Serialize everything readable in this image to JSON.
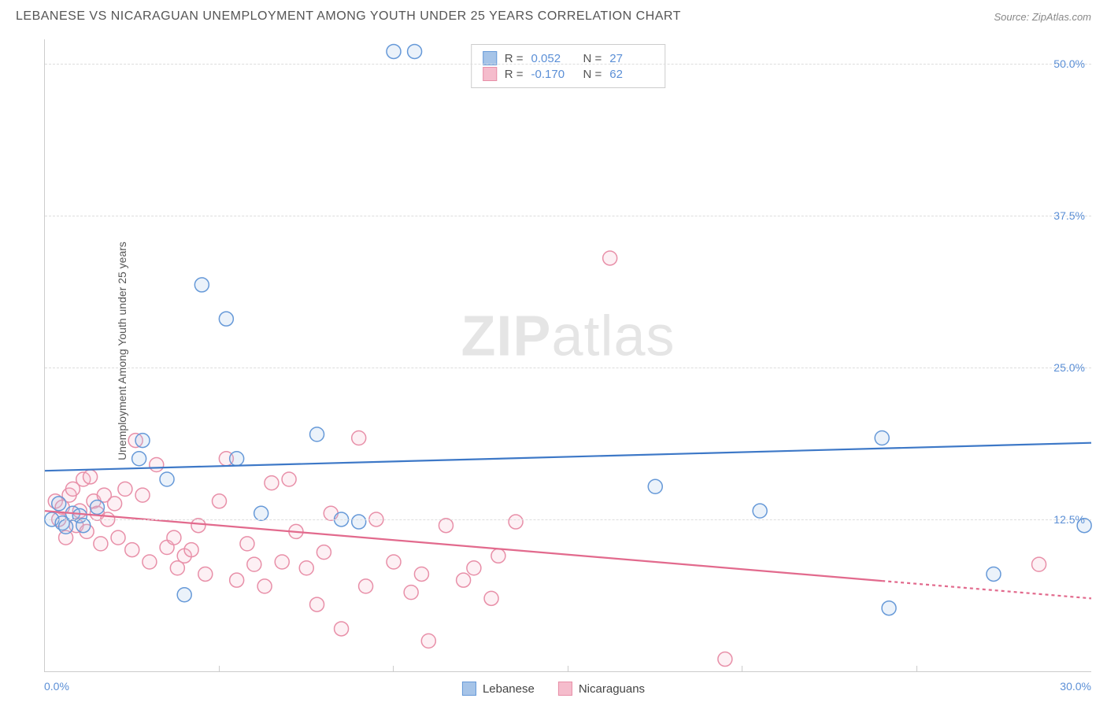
{
  "title": "LEBANESE VS NICARAGUAN UNEMPLOYMENT AMONG YOUTH UNDER 25 YEARS CORRELATION CHART",
  "source": "Source: ZipAtlas.com",
  "ylabel": "Unemployment Among Youth under 25 years",
  "watermark_bold": "ZIP",
  "watermark_rest": "atlas",
  "chart": {
    "type": "scatter",
    "xlim": [
      0,
      30
    ],
    "ylim": [
      0,
      52
    ],
    "background_color": "#ffffff",
    "grid_color": "#dddddd",
    "axis_color": "#cccccc",
    "tick_label_color": "#5b8fd6",
    "tick_fontsize": 14,
    "y_gridlines": [
      12.5,
      25.0,
      37.5,
      50.0
    ],
    "y_tick_labels": [
      "12.5%",
      "25.0%",
      "37.5%",
      "50.0%"
    ],
    "x_ticks": [
      0,
      5,
      10,
      15,
      20,
      25,
      30
    ],
    "x_axis_labels": {
      "left": "0.0%",
      "right": "30.0%"
    },
    "marker_radius": 9,
    "marker_stroke_width": 1.5,
    "marker_fill_opacity": 0.22,
    "line_width": 2.2,
    "series": [
      {
        "name": "Lebanese",
        "color_stroke": "#6699d8",
        "color_fill": "#a6c4e8",
        "line_color": "#3d78c7",
        "R": "0.052",
        "N": "27",
        "trend": {
          "x1": 0,
          "y1": 16.5,
          "x2": 30,
          "y2": 18.8
        },
        "trend_dash_from": 30,
        "points": [
          [
            0.2,
            12.5
          ],
          [
            0.4,
            13.8
          ],
          [
            0.5,
            12.2
          ],
          [
            0.6,
            11.9
          ],
          [
            0.8,
            13.0
          ],
          [
            1.0,
            12.8
          ],
          [
            1.1,
            12.0
          ],
          [
            1.5,
            13.5
          ],
          [
            2.7,
            17.5
          ],
          [
            2.8,
            19.0
          ],
          [
            3.5,
            15.8
          ],
          [
            4.0,
            6.3
          ],
          [
            4.5,
            31.8
          ],
          [
            5.2,
            29.0
          ],
          [
            5.5,
            17.5
          ],
          [
            6.2,
            13.0
          ],
          [
            7.8,
            19.5
          ],
          [
            8.5,
            12.5
          ],
          [
            9.0,
            12.3
          ],
          [
            10.0,
            51.0
          ],
          [
            10.6,
            51.0
          ],
          [
            17.5,
            15.2
          ],
          [
            20.5,
            13.2
          ],
          [
            24.0,
            19.2
          ],
          [
            24.2,
            5.2
          ],
          [
            27.2,
            8.0
          ],
          [
            29.8,
            12.0
          ]
        ]
      },
      {
        "name": "Nicaraguans",
        "color_stroke": "#e88fa8",
        "color_fill": "#f5bccc",
        "line_color": "#e26a8d",
        "R": "-0.170",
        "N": "62",
        "trend": {
          "x1": 0,
          "y1": 13.2,
          "x2": 30,
          "y2": 6.0
        },
        "trend_dash_from": 24,
        "points": [
          [
            0.3,
            14.0
          ],
          [
            0.4,
            12.5
          ],
          [
            0.5,
            13.5
          ],
          [
            0.6,
            11.0
          ],
          [
            0.7,
            14.5
          ],
          [
            0.8,
            15.0
          ],
          [
            0.9,
            12.0
          ],
          [
            1.0,
            13.2
          ],
          [
            1.1,
            15.8
          ],
          [
            1.2,
            11.5
          ],
          [
            1.3,
            16.0
          ],
          [
            1.4,
            14.0
          ],
          [
            1.5,
            13.0
          ],
          [
            1.6,
            10.5
          ],
          [
            1.7,
            14.5
          ],
          [
            1.8,
            12.5
          ],
          [
            2.0,
            13.8
          ],
          [
            2.1,
            11.0
          ],
          [
            2.3,
            15.0
          ],
          [
            2.5,
            10.0
          ],
          [
            2.6,
            19.0
          ],
          [
            2.8,
            14.5
          ],
          [
            3.0,
            9.0
          ],
          [
            3.2,
            17.0
          ],
          [
            3.5,
            10.2
          ],
          [
            3.7,
            11.0
          ],
          [
            3.8,
            8.5
          ],
          [
            4.0,
            9.5
          ],
          [
            4.2,
            10.0
          ],
          [
            4.4,
            12.0
          ],
          [
            4.6,
            8.0
          ],
          [
            5.0,
            14.0
          ],
          [
            5.2,
            17.5
          ],
          [
            5.5,
            7.5
          ],
          [
            5.8,
            10.5
          ],
          [
            6.0,
            8.8
          ],
          [
            6.3,
            7.0
          ],
          [
            6.5,
            15.5
          ],
          [
            6.8,
            9.0
          ],
          [
            7.0,
            15.8
          ],
          [
            7.2,
            11.5
          ],
          [
            7.5,
            8.5
          ],
          [
            7.8,
            5.5
          ],
          [
            8.0,
            9.8
          ],
          [
            8.2,
            13.0
          ],
          [
            8.5,
            3.5
          ],
          [
            9.0,
            19.2
          ],
          [
            9.2,
            7.0
          ],
          [
            9.5,
            12.5
          ],
          [
            10.0,
            9.0
          ],
          [
            10.5,
            6.5
          ],
          [
            10.8,
            8.0
          ],
          [
            11.0,
            2.5
          ],
          [
            11.5,
            12.0
          ],
          [
            12.0,
            7.5
          ],
          [
            12.3,
            8.5
          ],
          [
            12.8,
            6.0
          ],
          [
            13.0,
            9.5
          ],
          [
            13.5,
            12.3
          ],
          [
            16.2,
            34.0
          ],
          [
            19.5,
            1.0
          ],
          [
            28.5,
            8.8
          ]
        ]
      }
    ]
  },
  "legend": {
    "series1_label": "Lebanese",
    "series2_label": "Nicaraguans"
  }
}
